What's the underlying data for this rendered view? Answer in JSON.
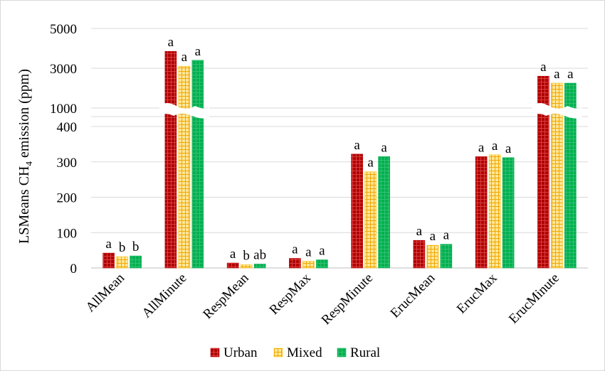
{
  "chart_data": {
    "type": "bar",
    "ylabel": "LSMeans CH4 emission (ppm)",
    "ylabel_parts": {
      "prefix": "LSMeans CH",
      "subscript": "4",
      "suffix": " emission (ppm)"
    },
    "y_axis_break": true,
    "upper_ticks": [
      "5000",
      "3000",
      "1000"
    ],
    "lower_ticks": [
      "0",
      "100",
      "200",
      "300",
      "400"
    ],
    "ylim_lower": [
      0,
      400
    ],
    "ylim_upper": [
      1000,
      5000
    ],
    "grid": true,
    "legend_position": "bottom",
    "categories": [
      "AllMean",
      "AllMinute",
      "RespMean",
      "RespMax",
      "RespMinute",
      "ErucMean",
      "ErucMax",
      "ErucMinute"
    ],
    "series": [
      {
        "name": "Urban",
        "color": "#c00000",
        "pattern": "grid",
        "values": [
          42,
          3850,
          14,
          27,
          322,
          78,
          315,
          2600
        ],
        "labels": [
          "a",
          "a",
          "a",
          "a",
          "a",
          "a",
          "a",
          "a"
        ]
      },
      {
        "name": "Mixed",
        "color": "#ffc000",
        "pattern": "grid",
        "values": [
          32,
          3100,
          9,
          19,
          272,
          64,
          320,
          2250
        ],
        "labels": [
          "b",
          "a",
          "b",
          "a",
          "a",
          "a",
          "a",
          "a"
        ]
      },
      {
        "name": "Rural",
        "color": "#00b050",
        "pattern": "grid",
        "values": [
          34,
          3400,
          11,
          23,
          315,
          67,
          312,
          2250
        ],
        "labels": [
          "b",
          "a",
          "ab",
          "a",
          "a",
          "a",
          "a",
          "a"
        ]
      }
    ]
  }
}
